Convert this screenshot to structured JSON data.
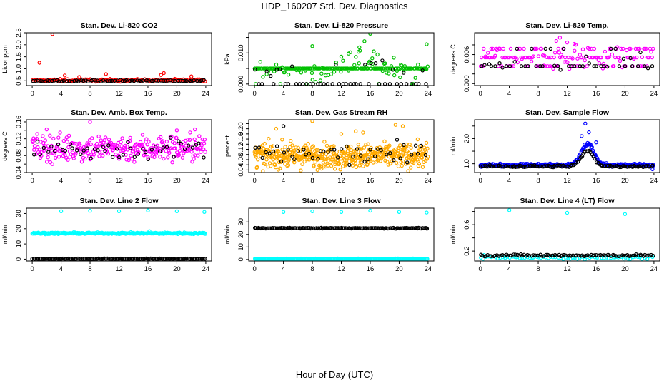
{
  "title": "HDP_160207  Std. Dev. Diagnostics",
  "xlabel": "Hour of Day (UTC)",
  "colors": {
    "frame": "#000000",
    "black_series": "#000000"
  },
  "chart_data": [
    {
      "type": "scatter",
      "title": "Stan. Dev. Li-820 CO2",
      "ylabel": "Licor ppm",
      "xlim": [
        -0.8,
        24.8
      ],
      "ylim": [
        0.3,
        2.5
      ],
      "xticks": [
        0,
        4,
        8,
        12,
        16,
        20,
        24
      ],
      "xtick_labels": [
        "0",
        "4",
        "8",
        "12",
        "16",
        "20",
        "24"
      ],
      "yticks": [
        0.5,
        1.0,
        1.5,
        2.0,
        2.5
      ],
      "ytick_labels": [
        "0.5",
        "1.0",
        "1.5",
        "2.0",
        "2.5"
      ],
      "color": "#ff0000",
      "series": [
        {
          "name": "primary",
          "color": "#ff0000",
          "band": {
            "base": 0.52,
            "spread": 0.05,
            "density": 6,
            "bumps": []
          },
          "extras": [
            [
              2.8,
              2.45
            ],
            [
              1.0,
              1.25
            ],
            [
              18.2,
              0.82
            ],
            [
              10.2,
              0.78
            ],
            [
              17.8,
              0.74
            ],
            [
              4.5,
              0.72
            ],
            [
              22,
              0.68
            ],
            [
              6.5,
              0.66
            ]
          ]
        },
        {
          "name": "secondary",
          "color": "#000000",
          "band": {
            "base": 0.5,
            "spread": 0.03,
            "density": 3,
            "bumps": []
          },
          "extras": []
        }
      ]
    },
    {
      "type": "scatter",
      "title": "Stan. Dev. Li-820 Pressure",
      "ylabel": "kPa",
      "xlim": [
        -0.8,
        24.8
      ],
      "ylim": [
        -0.0005,
        0.0165
      ],
      "xticks": [
        0,
        4,
        8,
        12,
        16,
        20,
        24
      ],
      "xtick_labels": [
        "0",
        "4",
        "8",
        "12",
        "16",
        "20",
        "24"
      ],
      "yticks": [
        0,
        0.005,
        0.01,
        0.015
      ],
      "ytick_labels": [
        "0.000",
        "",
        "0.010",
        ""
      ],
      "color": "#00c000",
      "series": [
        {
          "name": "primary",
          "color": "#00c000",
          "band": {
            "base": 0.0045,
            "spread": 0.003,
            "density": 9,
            "bumps": [
              [
                15,
                4,
                0.003
              ]
            ]
          },
          "levels": [
            0,
            0.005
          ],
          "extras": [
            [
              16,
              0.0162
            ],
            [
              23.8,
              0.0128
            ],
            [
              8,
              0.0122
            ],
            [
              15.2,
              0.0138
            ],
            [
              14.5,
              0.0118
            ],
            [
              13,
              0.0098
            ],
            [
              16.5,
              0.0105
            ],
            [
              17,
              0.0095
            ],
            [
              12,
              0.0088
            ]
          ]
        },
        {
          "name": "secondary",
          "color": "#000000",
          "band": {
            "base": 0.004,
            "spread": 0.003,
            "density": 2,
            "bumps": [
              [
                15,
                4,
                0.003
              ]
            ]
          },
          "levels": [
            0
          ],
          "extras": []
        }
      ]
    },
    {
      "type": "scatter",
      "title": "Stan. Dev. Li-820 Temp.",
      "ylabel": "degrees C",
      "xlim": [
        -0.8,
        24.8
      ],
      "ylim": [
        -0.0004,
        0.0105
      ],
      "xticks": [
        0,
        4,
        8,
        12,
        16,
        20,
        24
      ],
      "xtick_labels": [
        "0",
        "4",
        "8",
        "12",
        "16",
        "20",
        "24"
      ],
      "yticks": [
        0,
        0.002,
        0.004,
        0.006,
        0.008
      ],
      "ytick_labels": [
        "0.000",
        "",
        "",
        "0.006",
        ""
      ],
      "color": "#ff00ff",
      "series": [
        {
          "name": "primary",
          "color": "#ff00ff",
          "band": {
            "base": 0.0053,
            "spread": 0.0025,
            "density": 7,
            "bumps": []
          },
          "levels": [
            0,
            0.0036,
            0.0054,
            0.0072
          ],
          "extras": [
            [
              11,
              0.0095
            ],
            [
              10.5,
              0.0088
            ],
            [
              12,
              0.0085
            ],
            [
              13,
              0.0082
            ]
          ]
        },
        {
          "name": "secondary",
          "color": "#000000",
          "band": {
            "base": 0.0045,
            "spread": 0.002,
            "density": 2,
            "bumps": []
          },
          "levels": [
            0,
            0.0036,
            0.0072
          ],
          "extras": []
        }
      ]
    },
    {
      "type": "scatter",
      "title": "Stan. Dev. Amb. Box Temp.",
      "ylabel": "degrees C",
      "xlim": [
        -0.8,
        24.8
      ],
      "ylim": [
        0.04,
        0.165
      ],
      "xticks": [
        0,
        4,
        8,
        12,
        16,
        20,
        24
      ],
      "xtick_labels": [
        "0",
        "4",
        "8",
        "12",
        "16",
        "20",
        "24"
      ],
      "yticks": [
        0.04,
        0.06,
        0.08,
        0.1,
        0.12,
        0.14,
        0.16
      ],
      "ytick_labels": [
        "0.04",
        "",
        "0.08",
        "",
        "0.12",
        "",
        "0.16"
      ],
      "color": "#ff00ff",
      "series": [
        {
          "name": "primary",
          "color": "#ff00ff",
          "band": {
            "base": 0.098,
            "spread": 0.032,
            "density": 12,
            "bumps": []
          },
          "extras": [
            [
              8,
              0.16
            ],
            [
              2,
              0.142
            ],
            [
              22.5,
              0.142
            ],
            [
              20,
              0.14
            ]
          ]
        },
        {
          "name": "secondary",
          "color": "#000000",
          "band": {
            "base": 0.096,
            "spread": 0.025,
            "density": 2,
            "bumps": []
          },
          "extras": []
        }
      ]
    },
    {
      "type": "scatter",
      "title": "Stan. Dev. Gas Stream RH",
      "ylabel": "percent",
      "xlim": [
        -0.8,
        24.8
      ],
      "ylim": [
        0.03,
        0.235
      ],
      "xticks": [
        0,
        4,
        8,
        12,
        16,
        20,
        24
      ],
      "xtick_labels": [
        "0",
        "4",
        "8",
        "12",
        "16",
        "20",
        "24"
      ],
      "yticks": [
        0.04,
        0.06,
        0.08,
        0.1,
        0.12,
        0.14,
        0.16,
        0.18,
        0.2,
        0.22
      ],
      "ytick_labels": [
        "0.04",
        "",
        "0.08",
        "",
        "0.12",
        "",
        "0.16",
        "",
        "0.20",
        ""
      ],
      "color": "#ffaa00",
      "series": [
        {
          "name": "primary",
          "color": "#ffaa00",
          "band": {
            "base": 0.095,
            "spread": 0.045,
            "density": 20,
            "bumps": []
          },
          "extras": [
            [
              3,
              0.2
            ],
            [
              8,
              0.23
            ],
            [
              19.5,
              0.215
            ],
            [
              20.5,
              0.21
            ],
            [
              14,
              0.19
            ],
            [
              15,
              0.185
            ],
            [
              12,
              0.18
            ]
          ]
        },
        {
          "name": "secondary",
          "color": "#000000",
          "band": {
            "base": 0.1,
            "spread": 0.04,
            "density": 2,
            "bumps": []
          },
          "extras": [
            [
              4,
              0.21
            ]
          ]
        }
      ]
    },
    {
      "type": "scatter",
      "title": "Stan. Dev. Sample Flow",
      "ylabel": "ml/min",
      "xlim": [
        -0.8,
        24.8
      ],
      "ylim": [
        0.65,
        2.75
      ],
      "xticks": [
        0,
        4,
        8,
        12,
        16,
        20,
        24
      ],
      "xtick_labels": [
        "0",
        "4",
        "8",
        "12",
        "16",
        "20",
        "24"
      ],
      "yticks": [
        1.0,
        1.5,
        2.0,
        2.5
      ],
      "ytick_labels": [
        "1.0",
        "",
        "2.0",
        ""
      ],
      "color": "#0000ff",
      "series": [
        {
          "name": "primary",
          "color": "#0000ff",
          "band": {
            "base": 0.95,
            "spread": 0.06,
            "density": 10,
            "bumps": [
              [
                14.8,
                1.8,
                0.85
              ]
            ]
          },
          "extras": [
            [
              14.5,
              2.6
            ],
            [
              15,
              2.25
            ],
            [
              14,
              2.1
            ],
            [
              23.8,
              0.78
            ],
            [
              16,
              1.85
            ]
          ]
        },
        {
          "name": "secondary",
          "color": "#000000",
          "band": {
            "base": 0.9,
            "spread": 0.04,
            "density": 5,
            "bumps": [
              [
                14.8,
                1.8,
                0.6
              ]
            ]
          },
          "extras": []
        }
      ]
    },
    {
      "type": "scatter",
      "title": "Stan. Dev. Line 2 Flow",
      "ylabel": "ml/min",
      "xlim": [
        -0.8,
        24.8
      ],
      "ylim": [
        -1.2,
        33.5
      ],
      "xticks": [
        0,
        4,
        8,
        12,
        16,
        20,
        24
      ],
      "xtick_labels": [
        "0",
        "4",
        "8",
        "12",
        "16",
        "20",
        "24"
      ],
      "yticks": [
        0,
        10,
        20,
        30
      ],
      "ytick_labels": [
        "0",
        "10",
        "20",
        "30"
      ],
      "color": "#00ffff",
      "series": [
        {
          "name": "primary",
          "color": "#00ffff",
          "band": {
            "base": 17,
            "spread": 0.5,
            "density": 10,
            "bumps": []
          },
          "extras": [
            [
              4,
              31.5
            ],
            [
              8,
              31.8
            ],
            [
              12,
              31.5
            ],
            [
              16,
              32
            ],
            [
              20,
              31.5
            ],
            [
              23.8,
              31
            ],
            [
              16.2,
              18.4
            ]
          ]
        },
        {
          "name": "secondary",
          "color": "#000000",
          "band": {
            "base": 0.3,
            "spread": 0.15,
            "density": 6,
            "bumps": []
          },
          "extras": []
        }
      ]
    },
    {
      "type": "scatter",
      "title": "Stan. Dev. Line 3 Flow",
      "ylabel": "ml/min",
      "xlim": [
        -0.8,
        24.8
      ],
      "ylim": [
        -1.2,
        41
      ],
      "xticks": [
        0,
        4,
        8,
        12,
        16,
        20,
        24
      ],
      "xtick_labels": [
        "0",
        "4",
        "8",
        "12",
        "16",
        "20",
        "24"
      ],
      "yticks": [
        0,
        10,
        20,
        30
      ],
      "ytick_labels": [
        "0",
        "10",
        "20",
        "30"
      ],
      "color": "#00ffff",
      "series": [
        {
          "name": "primary",
          "color": "#00ffff",
          "band": {
            "base": 0.5,
            "spread": 0.25,
            "density": 10,
            "bumps": []
          },
          "extras": [
            [
              4,
              38
            ],
            [
              8,
              38.5
            ],
            [
              12,
              38
            ],
            [
              16,
              39
            ],
            [
              20,
              38
            ],
            [
              23.8,
              37.5
            ]
          ]
        },
        {
          "name": "secondary",
          "color": "#000000",
          "band": {
            "base": 25,
            "spread": 0.3,
            "density": 6,
            "bumps": []
          },
          "extras": []
        }
      ]
    },
    {
      "type": "scatter",
      "title": "Stan. Dev. Line 4 (LT) Flow",
      "ylabel": "ml/min",
      "xlim": [
        -0.8,
        24.8
      ],
      "ylim": [
        0.05,
        0.85
      ],
      "xticks": [
        0,
        4,
        8,
        12,
        16,
        20,
        24
      ],
      "xtick_labels": [
        "0",
        "4",
        "8",
        "12",
        "16",
        "20",
        "24"
      ],
      "yticks": [
        0.2,
        0.4,
        0.6,
        0.8
      ],
      "ytick_labels": [
        "0.2",
        "",
        "0.6",
        ""
      ],
      "color": "#00ffff",
      "series": [
        {
          "name": "primary",
          "color": "#00ffff",
          "band": {
            "base": 0.1,
            "spread": 0.02,
            "density": 3,
            "bumps": []
          },
          "extras": [
            [
              4,
              0.82
            ],
            [
              12,
              0.78
            ],
            [
              20,
              0.76
            ],
            [
              0.5,
              0.14
            ]
          ]
        },
        {
          "name": "secondary",
          "color": "#000000",
          "band": {
            "base": 0.135,
            "spread": 0.015,
            "density": 4,
            "bumps": []
          },
          "extras": []
        }
      ]
    }
  ]
}
